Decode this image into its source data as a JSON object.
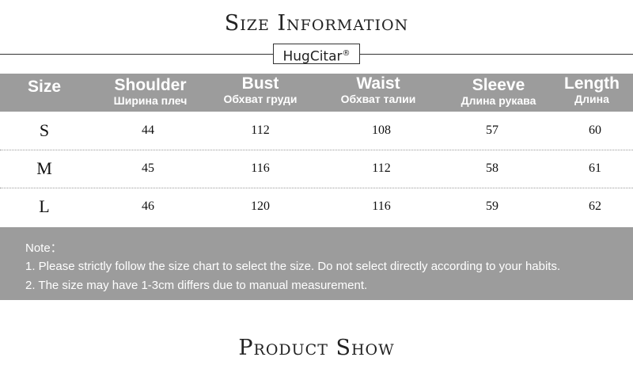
{
  "size_title": "Size Information",
  "brand": "HugCitar",
  "brand_mark": "®",
  "columns": [
    {
      "en": "Size",
      "ru": ""
    },
    {
      "en": "Shoulder",
      "ru": "Ширина плеч"
    },
    {
      "en": "Bust",
      "ru": "Обхват груди"
    },
    {
      "en": "Waist",
      "ru": "Обхват талии"
    },
    {
      "en": "Sleeve",
      "ru": "Длина рукава"
    },
    {
      "en": "Length",
      "ru": "Длина"
    }
  ],
  "rows": [
    [
      "S",
      "44",
      "112",
      "108",
      "57",
      "60"
    ],
    [
      "M",
      "45",
      "116",
      "112",
      "58",
      "61"
    ],
    [
      "L",
      "46",
      "120",
      "116",
      "59",
      "62"
    ]
  ],
  "notes": {
    "heading": "Note：",
    "items": [
      "1. Please strictly follow the size chart to select the size. Do not select directly according to your habits.",
      "2. The size may have 1-3cm differs due to manual measurement."
    ]
  },
  "product_title": "Product Show",
  "colors": {
    "header_bg": "#9c9c9c",
    "text": "#222222"
  }
}
